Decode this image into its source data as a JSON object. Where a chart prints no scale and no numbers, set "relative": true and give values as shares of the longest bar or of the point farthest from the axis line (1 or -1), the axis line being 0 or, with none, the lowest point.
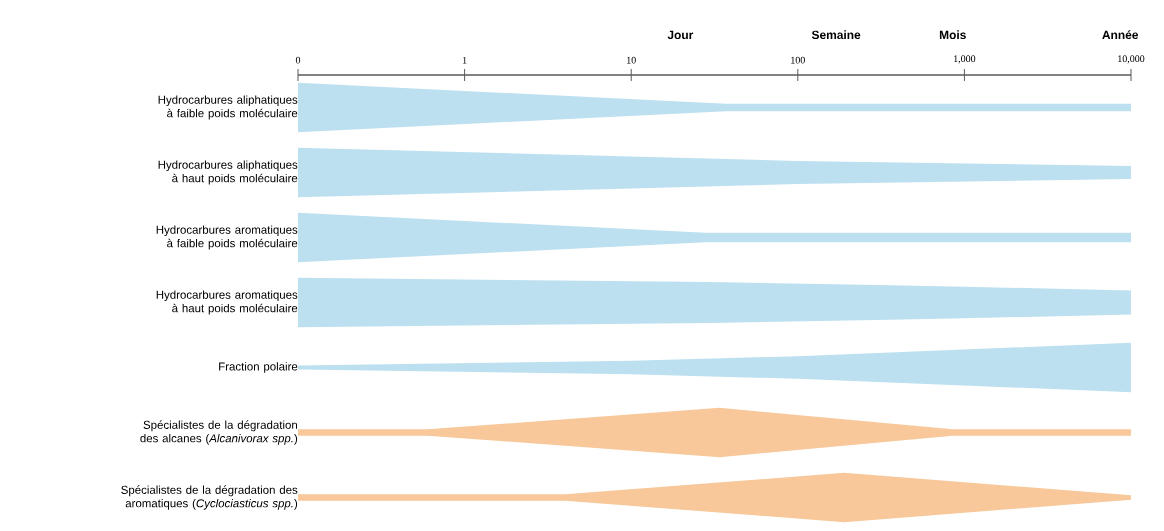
{
  "chart_data": [
    {
      "type": "area",
      "relative": true,
      "log": "x",
      "tick_labels": "x",
      "xlim": [
        0.1,
        10000
      ],
      "xticks": [
        {
          "value": 0.1,
          "label": "0"
        },
        1,
        10,
        100,
        {
          "value": 1000,
          "label": "1,000"
        },
        {
          "value": 10000,
          "label": "10,000"
        }
      ],
      "annotations": [
        "Jour",
        "Semaine",
        "Mois",
        "Année"
      ],
      "series": [
        {
          "name": "Hydrocarbures aliphatiques à faible poids moléculaire",
          "color": "#bde0f0",
          "x": [
            0.1,
            37,
            10000
          ],
          "values": [
            1.0,
            0.15,
            0.15
          ]
        }
      ]
    },
    {
      "type": "area",
      "relative": true,
      "log": "x",
      "tick_labels": false,
      "xlim": [
        0.1,
        10000
      ],
      "series": [
        {
          "name": "Hydrocarbures aliphatiques à haut poids moléculaire",
          "color": "#bde0f0",
          "x": [
            0.1,
            100,
            10000
          ],
          "values": [
            1.0,
            0.47,
            0.26
          ]
        }
      ]
    },
    {
      "type": "area",
      "relative": true,
      "log": "x",
      "tick_labels": false,
      "xlim": [
        0.1,
        10000
      ],
      "series": [
        {
          "name": "Hydrocarbures aromatiques à faible poids moléculaire",
          "color": "#bde0f0",
          "x": [
            0.1,
            28,
            10000
          ],
          "values": [
            1.0,
            0.19,
            0.19
          ]
        }
      ]
    },
    {
      "type": "area",
      "relative": true,
      "log": "x",
      "tick_labels": false,
      "xlim": [
        0.1,
        10000
      ],
      "series": [
        {
          "name": "Hydrocarbures aromatiques à haut poids moléculaire",
          "color": "#bde0f0",
          "x": [
            0.1,
            30,
            300,
            1000,
            10000
          ],
          "values": [
            1.0,
            0.83,
            0.71,
            0.64,
            0.49
          ]
        }
      ]
    },
    {
      "type": "area",
      "relative": true,
      "log": "x",
      "tick_labels": false,
      "xlim": [
        0.1,
        10000
      ],
      "series": [
        {
          "name": "Fraction polaire",
          "color": "#bde0f0",
          "x": [
            0.1,
            10,
            100,
            10000
          ],
          "values": [
            0.08,
            0.27,
            0.46,
            1.0
          ]
        }
      ]
    },
    {
      "type": "area",
      "relative": true,
      "log": "x",
      "tick_labels": false,
      "xlim": [
        0.1,
        10000
      ],
      "series": [
        {
          "name": "Spécialistes de la dégradation des alcanes (*Alcanivorax spp.*)",
          "color": "#f8c89a",
          "x": [
            0.1,
            0.6,
            34,
            850,
            10000
          ],
          "values": [
            0.13,
            0.13,
            1.0,
            0.13,
            0.13
          ]
        }
      ]
    },
    {
      "type": "area",
      "relative": true,
      "log": "x",
      "tick_labels": false,
      "xlim": [
        0.1,
        10000
      ],
      "series": [
        {
          "name": "Spécialistes de la dégradation des aromatiques (*Cyclociasticus spp.*)",
          "color": "#f8c89a",
          "x": [
            0.1,
            4,
            190,
            10000
          ],
          "values": [
            0.13,
            0.13,
            1.0,
            0.09
          ]
        }
      ]
    }
  ]
}
